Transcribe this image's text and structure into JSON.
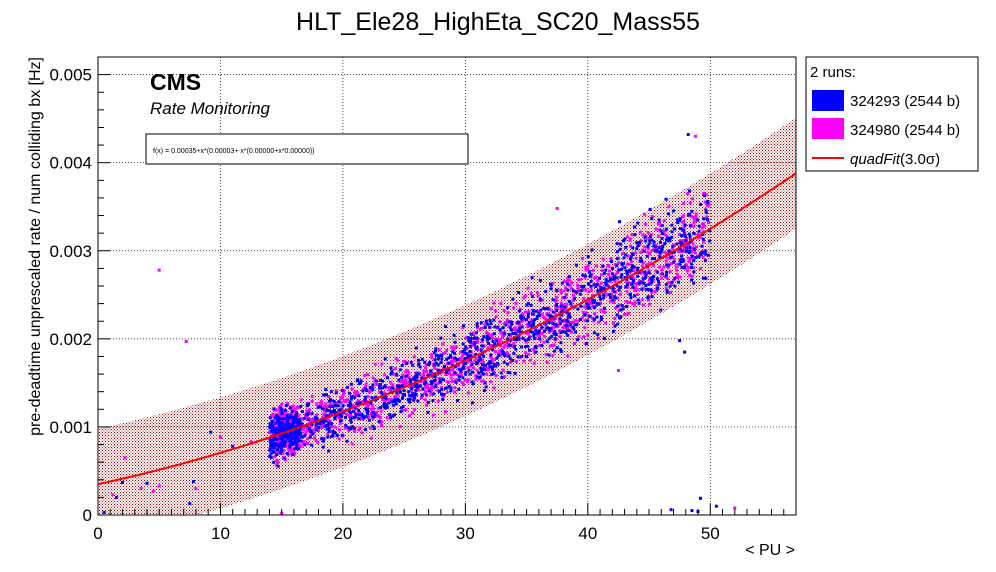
{
  "chart_data": {
    "type": "scatter",
    "title": "HLT_Ele28_HighEta_SC20_Mass55",
    "xlabel": "< PU >",
    "ylabel": "pre-deadtime unprescaled rate / num colliding bx [Hz]",
    "xlim": [
      0,
      57
    ],
    "ylim": [
      0,
      0.0052
    ],
    "x_ticks": [
      0,
      10,
      20,
      30,
      40,
      50
    ],
    "x_tick_labels": [
      "0",
      "10",
      "20",
      "30",
      "40",
      "50"
    ],
    "y_ticks": [
      0,
      0.001,
      0.002,
      0.003,
      0.004,
      0.005
    ],
    "y_tick_labels": [
      "0",
      "0.001",
      "0.002",
      "0.003",
      "0.004",
      "0.005"
    ],
    "grid": true,
    "cms_label": "CMS",
    "cms_sublabel": "Rate Monitoring",
    "fit_formula": "f(x) = 0.00035+x*(0.00003+ x*(0.00000+x*0.00000))",
    "fit": {
      "name": "quadFit",
      "sigma_label": "(3.0σ)",
      "coeffs": [
        0.00035,
        3e-05,
        5.6e-07
      ],
      "band_halfwidth": 0.00063,
      "color": "#ff0000"
    },
    "legend": {
      "title": "2 runs:",
      "position": "top-right, outside plot",
      "entries": [
        {
          "label": "324293 (2544 b)",
          "color": "#0000ff"
        },
        {
          "label": "324980 (2544 b)",
          "color": "#ff00ff"
        },
        {
          "label_italic": "quadFit",
          "label_rest": "(3.0σ)",
          "color": "#ff0000"
        }
      ]
    },
    "series": [
      {
        "name": "324293 (2544 b)",
        "color": "#0000ff",
        "x_range": [
          14,
          50
        ],
        "count": 1300
      },
      {
        "name": "324980 (2544 b)",
        "color": "#ff00ff",
        "x_range": [
          14,
          50
        ],
        "count": 1300
      }
    ],
    "outliers": [
      {
        "x": 5,
        "y": 0.00278,
        "color": "#ff00ff"
      },
      {
        "x": 7.2,
        "y": 0.00197,
        "color": "#ff00ff"
      },
      {
        "x": 37.5,
        "y": 0.00348,
        "color": "#ff00ff"
      },
      {
        "x": 42.5,
        "y": 0.00164,
        "color": "#ff00ff"
      },
      {
        "x": 47.5,
        "y": 0.00198,
        "color": "#0000ff"
      },
      {
        "x": 47.9,
        "y": 0.00185,
        "color": "#0000ff"
      },
      {
        "x": 48.2,
        "y": 0.00432,
        "color": "#0000ff"
      },
      {
        "x": 48.8,
        "y": 0.0043,
        "color": "#ff00ff"
      },
      {
        "x": 49.2,
        "y": 0.00019,
        "color": "#0000ff"
      },
      {
        "x": 49.0,
        "y": 4e-05,
        "color": "#0000ff"
      },
      {
        "x": 48.5,
        "y": 5e-05,
        "color": "#0000ff"
      },
      {
        "x": 46.8,
        "y": 6e-05,
        "color": "#0000ff"
      },
      {
        "x": 52.0,
        "y": 8e-05,
        "color": "#ff00ff"
      },
      {
        "x": 50.5,
        "y": 0.0001,
        "color": "#0000ff"
      },
      {
        "x": 1.5,
        "y": 0.0002,
        "color": "#0000ff"
      },
      {
        "x": 2.0,
        "y": 0.00037,
        "color": "#0000ff"
      },
      {
        "x": 2.2,
        "y": 0.00065,
        "color": "#ff00ff"
      },
      {
        "x": 3.5,
        "y": 0.0003,
        "color": "#ff00ff"
      },
      {
        "x": 4.0,
        "y": 0.00036,
        "color": "#0000ff"
      },
      {
        "x": 4.5,
        "y": 0.00027,
        "color": "#ff00ff"
      },
      {
        "x": 5.0,
        "y": 0.00033,
        "color": "#ff00ff"
      },
      {
        "x": 7.8,
        "y": 0.00038,
        "color": "#0000ff"
      },
      {
        "x": 8.0,
        "y": 0.0003,
        "color": "#ff00ff"
      },
      {
        "x": 7.5,
        "y": 0.00013,
        "color": "#0000ff"
      },
      {
        "x": 9.2,
        "y": 0.00094,
        "color": "#0000ff"
      },
      {
        "x": 10.0,
        "y": 0.00088,
        "color": "#ff00ff"
      },
      {
        "x": 11.0,
        "y": 0.00078,
        "color": "#0000ff"
      },
      {
        "x": 12.5,
        "y": 0.00083,
        "color": "#ff00ff"
      },
      {
        "x": 15.0,
        "y": 2e-05,
        "color": "#ff00ff"
      },
      {
        "x": 0.5,
        "y": 3e-05,
        "color": "#0000ff"
      },
      {
        "x": 1.2,
        "y": 0.00023,
        "color": "#ff00ff"
      }
    ]
  }
}
